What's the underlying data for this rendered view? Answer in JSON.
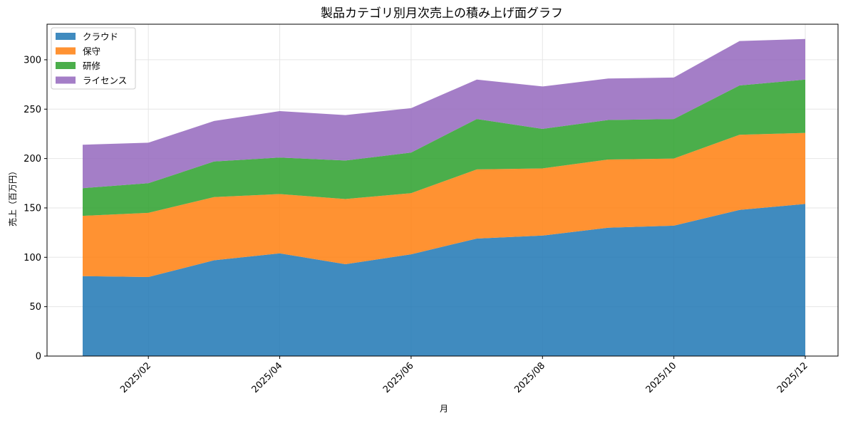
{
  "chart_data": {
    "type": "area",
    "stacked": true,
    "title": "製品カテゴリ別月次売上の積み上げ面グラフ",
    "xlabel": "月",
    "ylabel": "売上（百万円）",
    "x": [
      "2025/01",
      "2025/02",
      "2025/03",
      "2025/04",
      "2025/05",
      "2025/06",
      "2025/07",
      "2025/08",
      "2025/09",
      "2025/10",
      "2025/11",
      "2025/12"
    ],
    "x_tick_labels": [
      "2025/02",
      "2025/04",
      "2025/06",
      "2025/08",
      "2025/10",
      "2025/12"
    ],
    "y_ticks": [
      0,
      50,
      100,
      150,
      200,
      250,
      300
    ],
    "ylim": [
      0,
      336
    ],
    "grid": true,
    "legend_position": "top-left",
    "series": [
      {
        "name": "クラウド",
        "color": "#1f77b4",
        "values": [
          81,
          80,
          97,
          104,
          93,
          103,
          119,
          122,
          130,
          132,
          148,
          154
        ]
      },
      {
        "name": "保守",
        "color": "#ff7f0e",
        "values": [
          61,
          65,
          64,
          60,
          66,
          62,
          70,
          68,
          69,
          68,
          76,
          72
        ]
      },
      {
        "name": "研修",
        "color": "#2ca02c",
        "values": [
          28,
          30,
          36,
          37,
          39,
          41,
          51,
          40,
          40,
          40,
          50,
          54
        ]
      },
      {
        "name": "ライセンス",
        "color": "#9467bd",
        "values": [
          44,
          41,
          41,
          47,
          46,
          45,
          40,
          43,
          42,
          42,
          45,
          41
        ]
      }
    ]
  }
}
